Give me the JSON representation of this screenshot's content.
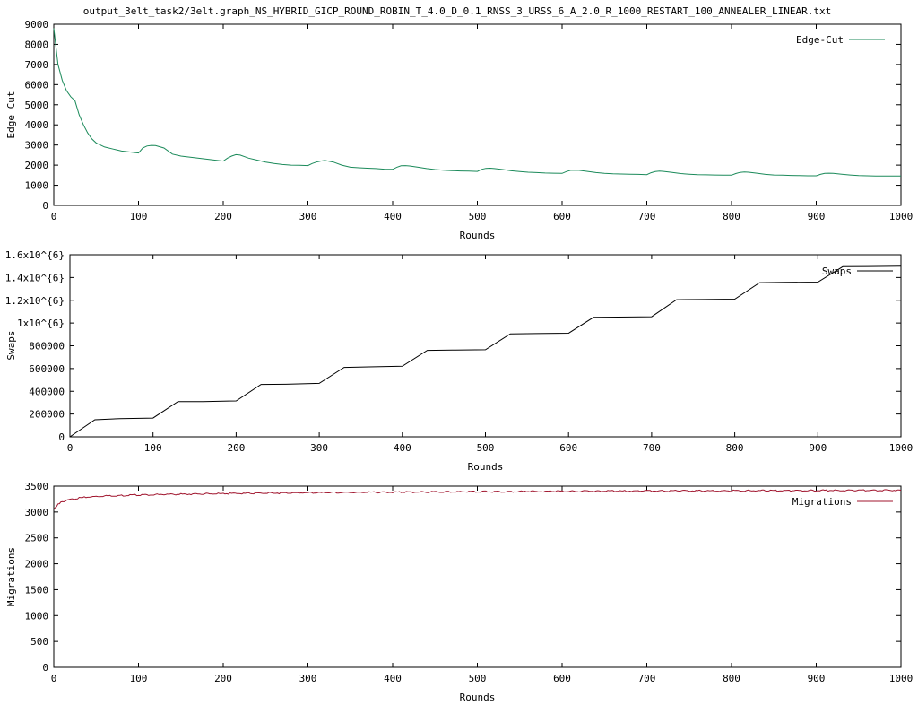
{
  "title": "output_3elt_task2/3elt.graph_NS_HYBRID_GICP_ROUND_ROBIN_T_4.0_D_0.1_RNSS_3_URSS_6_A_2.0_R_1000_RESTART_100_ANNEALER_LINEAR.txt",
  "chart_data": [
    {
      "type": "line",
      "xlabel": "Rounds",
      "ylabel": "Edge Cut",
      "xlim": [
        0,
        1000
      ],
      "ylim": [
        0,
        9000
      ],
      "xticks": [
        "0",
        "100",
        "200",
        "300",
        "400",
        "500",
        "600",
        "700",
        "800",
        "900",
        "1000"
      ],
      "yticks": [
        "0",
        "1000",
        "2000",
        "3000",
        "4000",
        "5000",
        "6000",
        "7000",
        "8000",
        "9000"
      ],
      "legend_position": "top-right",
      "color": "#1b8a5a",
      "series": [
        {
          "name": "Edge-Cut",
          "x": [
            0,
            5,
            10,
            15,
            20,
            25,
            30,
            35,
            40,
            45,
            50,
            60,
            70,
            80,
            90,
            100,
            105,
            110,
            115,
            120,
            130,
            140,
            150,
            160,
            170,
            180,
            190,
            200,
            205,
            210,
            215,
            220,
            230,
            240,
            250,
            260,
            270,
            280,
            290,
            300,
            305,
            310,
            315,
            320,
            330,
            340,
            350,
            360,
            370,
            380,
            390,
            400,
            405,
            410,
            415,
            420,
            430,
            440,
            450,
            460,
            470,
            480,
            490,
            500,
            505,
            510,
            515,
            520,
            530,
            540,
            550,
            560,
            570,
            580,
            590,
            600,
            605,
            610,
            615,
            620,
            630,
            640,
            650,
            660,
            670,
            680,
            690,
            700,
            705,
            710,
            715,
            720,
            730,
            740,
            750,
            760,
            770,
            780,
            790,
            800,
            805,
            810,
            815,
            820,
            830,
            840,
            850,
            860,
            870,
            880,
            890,
            900,
            905,
            910,
            915,
            920,
            930,
            940,
            950,
            960,
            970,
            980,
            990,
            1000
          ],
          "values": [
            8800,
            7000,
            6200,
            5700,
            5400,
            5200,
            4500,
            4000,
            3600,
            3300,
            3100,
            2900,
            2800,
            2700,
            2650,
            2600,
            2850,
            2950,
            2980,
            2970,
            2850,
            2550,
            2450,
            2400,
            2350,
            2300,
            2250,
            2200,
            2350,
            2450,
            2520,
            2500,
            2350,
            2250,
            2150,
            2080,
            2030,
            2000,
            1990,
            1980,
            2080,
            2150,
            2200,
            2230,
            2150,
            2000,
            1900,
            1870,
            1850,
            1830,
            1800,
            1790,
            1900,
            1970,
            1980,
            1960,
            1900,
            1830,
            1780,
            1750,
            1730,
            1710,
            1700,
            1690,
            1790,
            1840,
            1850,
            1830,
            1780,
            1720,
            1680,
            1650,
            1630,
            1610,
            1600,
            1590,
            1680,
            1740,
            1750,
            1740,
            1690,
            1630,
            1590,
            1570,
            1560,
            1550,
            1540,
            1530,
            1620,
            1680,
            1700,
            1690,
            1640,
            1580,
            1550,
            1530,
            1520,
            1510,
            1500,
            1500,
            1580,
            1640,
            1660,
            1650,
            1600,
            1540,
            1510,
            1500,
            1490,
            1480,
            1470,
            1470,
            1540,
            1590,
            1600,
            1590,
            1550,
            1510,
            1480,
            1470,
            1460,
            1460,
            1460,
            1460
          ]
        }
      ]
    },
    {
      "type": "line",
      "xlabel": "Rounds",
      "ylabel": "Swaps",
      "xlim": [
        0,
        1000
      ],
      "ylim": [
        0,
        1600000
      ],
      "xticks": [
        "0",
        "100",
        "200",
        "300",
        "400",
        "500",
        "600",
        "700",
        "800",
        "900",
        "1000"
      ],
      "yticks": [
        "0",
        "200000",
        "400000",
        "600000",
        "800000",
        "1x10^{6}",
        "1.2x10^{6}",
        "1.4x10^{6}",
        "1.6x10^{6}"
      ],
      "legend_position": "top-right",
      "color": "#000000",
      "series": [
        {
          "name": "Swaps",
          "x": [
            0,
            30,
            60,
            100,
            130,
            160,
            200,
            230,
            260,
            300,
            330,
            360,
            400,
            430,
            460,
            500,
            530,
            560,
            600,
            630,
            660,
            700,
            730,
            760,
            800,
            830,
            860,
            900,
            930,
            960,
            1000
          ],
          "values": [
            0,
            150000,
            160000,
            165000,
            310000,
            310000,
            315000,
            460000,
            462000,
            470000,
            610000,
            615000,
            620000,
            760000,
            762000,
            765000,
            905000,
            907000,
            910000,
            1050000,
            1052000,
            1055000,
            1205000,
            1207000,
            1210000,
            1355000,
            1357000,
            1360000,
            1495000,
            1497000,
            1500000
          ]
        }
      ]
    },
    {
      "type": "line",
      "xlabel": "Rounds",
      "ylabel": "Migrations",
      "xlim": [
        0,
        1000
      ],
      "ylim": [
        0,
        3500
      ],
      "xticks": [
        "0",
        "100",
        "200",
        "300",
        "400",
        "500",
        "600",
        "700",
        "800",
        "900",
        "1000"
      ],
      "yticks": [
        "0",
        "500",
        "1000",
        "1500",
        "2000",
        "2500",
        "3000",
        "3500"
      ],
      "legend_position": "top-right",
      "color": "#a0142d",
      "series": [
        {
          "name": "Migrations",
          "x": [
            0,
            5,
            10,
            20,
            30,
            40,
            50,
            60,
            80,
            100,
            150,
            200,
            250,
            300,
            350,
            400,
            450,
            500,
            550,
            600,
            650,
            700,
            750,
            800,
            850,
            900,
            950,
            1000
          ],
          "values": [
            3050,
            3150,
            3200,
            3240,
            3270,
            3290,
            3300,
            3310,
            3320,
            3330,
            3345,
            3355,
            3365,
            3372,
            3378,
            3384,
            3388,
            3392,
            3396,
            3400,
            3404,
            3407,
            3410,
            3412,
            3414,
            3416,
            3418,
            3420
          ]
        }
      ]
    }
  ]
}
